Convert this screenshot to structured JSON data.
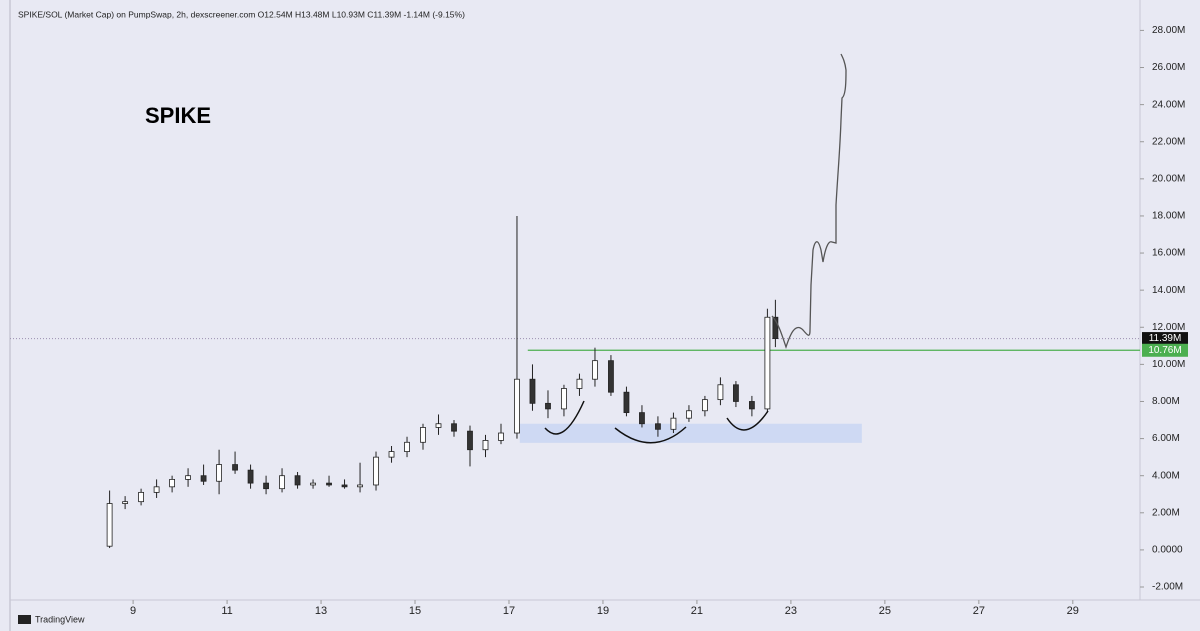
{
  "chart_data": {
    "type": "candlestick",
    "header": "SPIKE/SOL (Market Cap) on PumpSwap, 2h, dexscreener.com  O12.54M  H13.48M  L10.93M  C11.39M  -1.14M (-9.15%)",
    "title": "SPIKE",
    "watermark": "TradingView",
    "x": [
      8.5,
      8.83,
      9.17,
      9.5,
      9.83,
      10.17,
      10.5,
      10.83,
      11.17,
      11.5,
      11.83,
      12.17,
      12.5,
      12.83,
      13.17,
      13.5,
      13.83,
      14.17,
      14.5,
      14.83,
      15.17,
      15.5,
      15.83,
      16.17,
      16.5,
      16.83,
      17.17,
      17.5,
      17.83,
      18.17,
      18.5,
      18.83,
      19.17,
      19.5,
      19.83,
      20.17,
      20.5,
      20.83,
      21.17,
      21.5,
      21.83,
      22.17,
      22.5,
      22.67
    ],
    "open": [
      0.2,
      2.5,
      2.6,
      3.1,
      3.4,
      3.8,
      4.0,
      3.7,
      4.6,
      4.3,
      3.6,
      3.3,
      4.0,
      3.5,
      3.6,
      3.5,
      3.4,
      3.5,
      5.0,
      5.3,
      5.8,
      6.6,
      6.8,
      6.4,
      5.4,
      5.9,
      6.3,
      9.2,
      7.9,
      7.6,
      8.7,
      9.2,
      10.2,
      8.5,
      7.4,
      6.8,
      6.5,
      7.1,
      7.5,
      8.1,
      8.9,
      8.0,
      7.6,
      12.54
    ],
    "high": [
      3.2,
      2.9,
      3.3,
      3.8,
      4.0,
      4.4,
      4.6,
      5.4,
      5.3,
      4.6,
      4.0,
      4.4,
      4.2,
      3.8,
      4.0,
      3.8,
      4.7,
      5.3,
      5.6,
      6.1,
      6.8,
      7.3,
      7.0,
      6.7,
      6.2,
      6.8,
      18.0,
      10.0,
      8.6,
      8.9,
      9.5,
      10.9,
      10.5,
      8.8,
      7.8,
      7.2,
      7.4,
      7.8,
      8.3,
      9.3,
      9.1,
      8.3,
      13.0,
      13.48
    ],
    "low": [
      0.1,
      2.2,
      2.4,
      2.8,
      3.1,
      3.4,
      3.5,
      3.0,
      4.1,
      3.3,
      3.0,
      3.1,
      3.3,
      3.3,
      3.4,
      3.3,
      3.1,
      3.2,
      4.7,
      5.0,
      5.4,
      6.2,
      6.1,
      4.5,
      5.0,
      5.7,
      6.0,
      7.5,
      7.1,
      7.2,
      8.3,
      8.8,
      8.3,
      7.2,
      6.6,
      6.1,
      6.3,
      6.9,
      7.2,
      7.8,
      7.7,
      7.2,
      7.4,
      10.93
    ],
    "close": [
      2.5,
      2.6,
      3.1,
      3.4,
      3.8,
      4.0,
      3.7,
      4.6,
      4.3,
      3.6,
      3.3,
      4.0,
      3.5,
      3.6,
      3.5,
      3.4,
      3.5,
      5.0,
      5.3,
      5.8,
      6.6,
      6.8,
      6.4,
      5.4,
      5.9,
      6.3,
      9.2,
      7.9,
      7.6,
      8.7,
      9.2,
      10.2,
      8.5,
      7.4,
      6.8,
      6.5,
      7.1,
      7.5,
      8.1,
      8.9,
      8.0,
      7.6,
      12.54,
      11.39
    ],
    "xlim": [
      6.38,
      30.43
    ],
    "xticks": [
      9,
      11,
      13,
      15,
      17,
      19,
      21,
      23,
      25,
      27,
      29
    ],
    "ylim": [
      -2.7,
      29.1
    ],
    "yticks": [
      {
        "value": -2,
        "label": "-2.00M"
      },
      {
        "value": 0,
        "label": "0.0000"
      },
      {
        "value": 2,
        "label": "2.00M"
      },
      {
        "value": 4,
        "label": "4.00M"
      },
      {
        "value": 6,
        "label": "6.00M"
      },
      {
        "value": 8,
        "label": "8.00M"
      },
      {
        "value": 10,
        "label": "10.00M"
      },
      {
        "value": 12,
        "label": "12.00M"
      },
      {
        "value": 14,
        "label": "14.00M"
      },
      {
        "value": 16,
        "label": "16.00M"
      },
      {
        "value": 18,
        "label": "18.00M"
      },
      {
        "value": 20,
        "label": "20.00M"
      },
      {
        "value": 22,
        "label": "22.00M"
      },
      {
        "value": 24,
        "label": "24.00M"
      },
      {
        "value": 26,
        "label": "26.00M"
      },
      {
        "value": 28,
        "label": "28.00M"
      }
    ],
    "last_price": {
      "value": 11.39,
      "label": "11.39M",
      "color": "#111111"
    },
    "level": {
      "value": 10.76,
      "label": "10.76M",
      "color": "#4caf50",
      "start": 17.4
    },
    "zone": {
      "x": [
        17.23,
        24.51
      ],
      "y": [
        5.77,
        6.8
      ],
      "color": "#c9d6f2"
    },
    "up_color": "#ffffff",
    "down_color": "#333333"
  }
}
